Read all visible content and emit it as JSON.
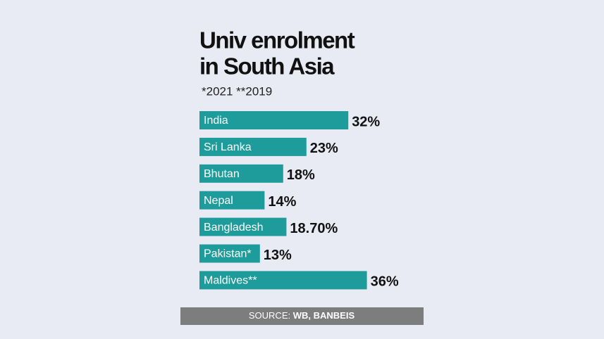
{
  "chart_data": {
    "type": "bar",
    "orientation": "horizontal",
    "title_lines": [
      "Univ enrolment",
      "in South Asia"
    ],
    "subtitle": "*2021 **2019",
    "categories": [
      "India",
      "Sri Lanka",
      "Bhutan",
      "Nepal",
      "Bangladesh",
      "Pakistan*",
      "Maldives**"
    ],
    "values": [
      32,
      23,
      18,
      14,
      18.7,
      13,
      36
    ],
    "value_labels": [
      "32%",
      "23%",
      "18%",
      "14%",
      "18.70%",
      "13%",
      "36%"
    ],
    "color": "#1e9c9c",
    "source_label": "SOURCE:",
    "source": "WB, BANBEIS"
  }
}
